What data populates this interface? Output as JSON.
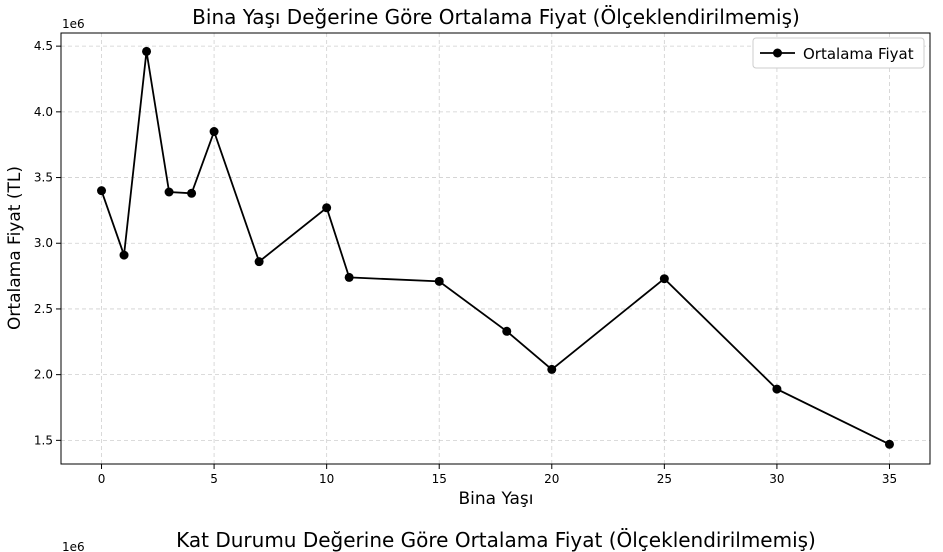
{
  "chart_data": [
    {
      "type": "line",
      "title": "Bina Yaşı Değerine Göre Ortalama Fiyat (Ölçeklendirilmemiş)",
      "xlabel": "Bina Yaşı",
      "ylabel": "Ortalama Fiyat (TL)",
      "y_offset_label": "1e6",
      "xlim": [
        -1.8,
        36.8
      ],
      "ylim": [
        1.32,
        4.6
      ],
      "x_ticks": [
        0,
        5,
        10,
        15,
        20,
        25,
        30,
        35
      ],
      "y_ticks": [
        1.5,
        2.0,
        2.5,
        3.0,
        3.5,
        4.0,
        4.5
      ],
      "grid": true,
      "legend_position": "top-right",
      "series": [
        {
          "name": "Ortalama Fiyat",
          "color": "#000000",
          "marker": "circle",
          "x": [
            0,
            1,
            2,
            3,
            4,
            5,
            7,
            10,
            11,
            15,
            18,
            20,
            25,
            30,
            35
          ],
          "y": [
            3.4,
            2.91,
            4.46,
            3.39,
            3.38,
            3.85,
            2.86,
            3.27,
            2.74,
            2.71,
            2.33,
            2.04,
            2.73,
            1.89,
            1.47
          ]
        }
      ]
    },
    {
      "type": "line",
      "title": "Kat Durumu Değerine Göre Ortalama Fiyat (Ölçeklendirilmemiş)",
      "y_offset_label": "1e6"
    }
  ]
}
